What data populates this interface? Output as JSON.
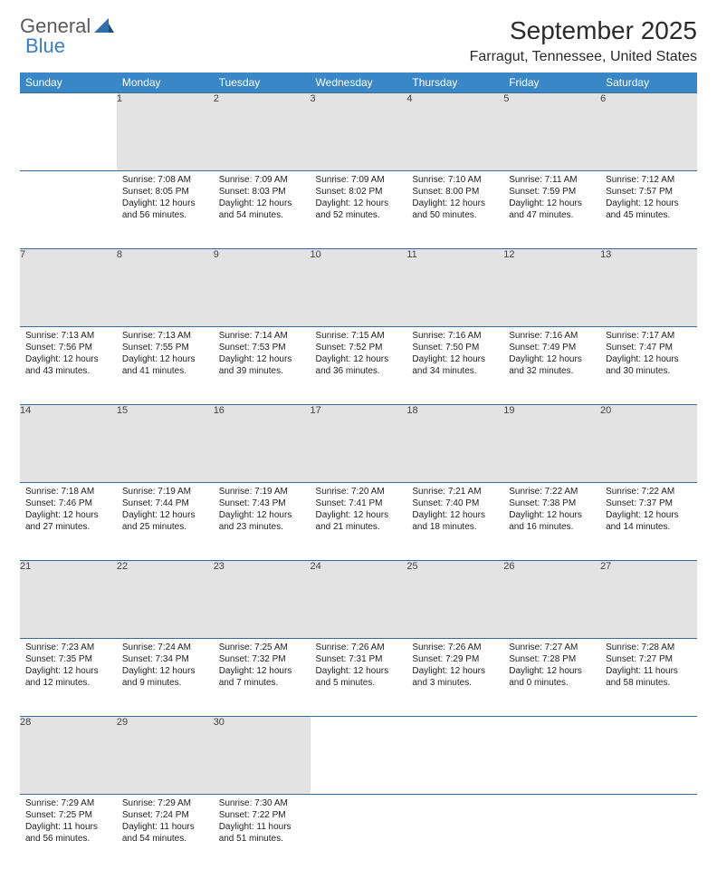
{
  "brand": {
    "word1": "General",
    "word2": "Blue"
  },
  "title": "September 2025",
  "location": "Farragut, Tennessee, United States",
  "colors": {
    "header_bg": "#3a87c7",
    "header_text": "#ffffff",
    "daynum_bg": "#e3e3e3",
    "row_border": "#3a6a9a",
    "logo_gray": "#5a5a5a",
    "logo_blue": "#3a7ebf"
  },
  "day_headers": [
    "Sunday",
    "Monday",
    "Tuesday",
    "Wednesday",
    "Thursday",
    "Friday",
    "Saturday"
  ],
  "weeks": [
    [
      null,
      {
        "n": "1",
        "sr": "Sunrise: 7:08 AM",
        "ss": "Sunset: 8:05 PM",
        "dl": "Daylight: 12 hours and 56 minutes."
      },
      {
        "n": "2",
        "sr": "Sunrise: 7:09 AM",
        "ss": "Sunset: 8:03 PM",
        "dl": "Daylight: 12 hours and 54 minutes."
      },
      {
        "n": "3",
        "sr": "Sunrise: 7:09 AM",
        "ss": "Sunset: 8:02 PM",
        "dl": "Daylight: 12 hours and 52 minutes."
      },
      {
        "n": "4",
        "sr": "Sunrise: 7:10 AM",
        "ss": "Sunset: 8:00 PM",
        "dl": "Daylight: 12 hours and 50 minutes."
      },
      {
        "n": "5",
        "sr": "Sunrise: 7:11 AM",
        "ss": "Sunset: 7:59 PM",
        "dl": "Daylight: 12 hours and 47 minutes."
      },
      {
        "n": "6",
        "sr": "Sunrise: 7:12 AM",
        "ss": "Sunset: 7:57 PM",
        "dl": "Daylight: 12 hours and 45 minutes."
      }
    ],
    [
      {
        "n": "7",
        "sr": "Sunrise: 7:13 AM",
        "ss": "Sunset: 7:56 PM",
        "dl": "Daylight: 12 hours and 43 minutes."
      },
      {
        "n": "8",
        "sr": "Sunrise: 7:13 AM",
        "ss": "Sunset: 7:55 PM",
        "dl": "Daylight: 12 hours and 41 minutes."
      },
      {
        "n": "9",
        "sr": "Sunrise: 7:14 AM",
        "ss": "Sunset: 7:53 PM",
        "dl": "Daylight: 12 hours and 39 minutes."
      },
      {
        "n": "10",
        "sr": "Sunrise: 7:15 AM",
        "ss": "Sunset: 7:52 PM",
        "dl": "Daylight: 12 hours and 36 minutes."
      },
      {
        "n": "11",
        "sr": "Sunrise: 7:16 AM",
        "ss": "Sunset: 7:50 PM",
        "dl": "Daylight: 12 hours and 34 minutes."
      },
      {
        "n": "12",
        "sr": "Sunrise: 7:16 AM",
        "ss": "Sunset: 7:49 PM",
        "dl": "Daylight: 12 hours and 32 minutes."
      },
      {
        "n": "13",
        "sr": "Sunrise: 7:17 AM",
        "ss": "Sunset: 7:47 PM",
        "dl": "Daylight: 12 hours and 30 minutes."
      }
    ],
    [
      {
        "n": "14",
        "sr": "Sunrise: 7:18 AM",
        "ss": "Sunset: 7:46 PM",
        "dl": "Daylight: 12 hours and 27 minutes."
      },
      {
        "n": "15",
        "sr": "Sunrise: 7:19 AM",
        "ss": "Sunset: 7:44 PM",
        "dl": "Daylight: 12 hours and 25 minutes."
      },
      {
        "n": "16",
        "sr": "Sunrise: 7:19 AM",
        "ss": "Sunset: 7:43 PM",
        "dl": "Daylight: 12 hours and 23 minutes."
      },
      {
        "n": "17",
        "sr": "Sunrise: 7:20 AM",
        "ss": "Sunset: 7:41 PM",
        "dl": "Daylight: 12 hours and 21 minutes."
      },
      {
        "n": "18",
        "sr": "Sunrise: 7:21 AM",
        "ss": "Sunset: 7:40 PM",
        "dl": "Daylight: 12 hours and 18 minutes."
      },
      {
        "n": "19",
        "sr": "Sunrise: 7:22 AM",
        "ss": "Sunset: 7:38 PM",
        "dl": "Daylight: 12 hours and 16 minutes."
      },
      {
        "n": "20",
        "sr": "Sunrise: 7:22 AM",
        "ss": "Sunset: 7:37 PM",
        "dl": "Daylight: 12 hours and 14 minutes."
      }
    ],
    [
      {
        "n": "21",
        "sr": "Sunrise: 7:23 AM",
        "ss": "Sunset: 7:35 PM",
        "dl": "Daylight: 12 hours and 12 minutes."
      },
      {
        "n": "22",
        "sr": "Sunrise: 7:24 AM",
        "ss": "Sunset: 7:34 PM",
        "dl": "Daylight: 12 hours and 9 minutes."
      },
      {
        "n": "23",
        "sr": "Sunrise: 7:25 AM",
        "ss": "Sunset: 7:32 PM",
        "dl": "Daylight: 12 hours and 7 minutes."
      },
      {
        "n": "24",
        "sr": "Sunrise: 7:26 AM",
        "ss": "Sunset: 7:31 PM",
        "dl": "Daylight: 12 hours and 5 minutes."
      },
      {
        "n": "25",
        "sr": "Sunrise: 7:26 AM",
        "ss": "Sunset: 7:29 PM",
        "dl": "Daylight: 12 hours and 3 minutes."
      },
      {
        "n": "26",
        "sr": "Sunrise: 7:27 AM",
        "ss": "Sunset: 7:28 PM",
        "dl": "Daylight: 12 hours and 0 minutes."
      },
      {
        "n": "27",
        "sr": "Sunrise: 7:28 AM",
        "ss": "Sunset: 7:27 PM",
        "dl": "Daylight: 11 hours and 58 minutes."
      }
    ],
    [
      {
        "n": "28",
        "sr": "Sunrise: 7:29 AM",
        "ss": "Sunset: 7:25 PM",
        "dl": "Daylight: 11 hours and 56 minutes."
      },
      {
        "n": "29",
        "sr": "Sunrise: 7:29 AM",
        "ss": "Sunset: 7:24 PM",
        "dl": "Daylight: 11 hours and 54 minutes."
      },
      {
        "n": "30",
        "sr": "Sunrise: 7:30 AM",
        "ss": "Sunset: 7:22 PM",
        "dl": "Daylight: 11 hours and 51 minutes."
      },
      null,
      null,
      null,
      null
    ]
  ]
}
